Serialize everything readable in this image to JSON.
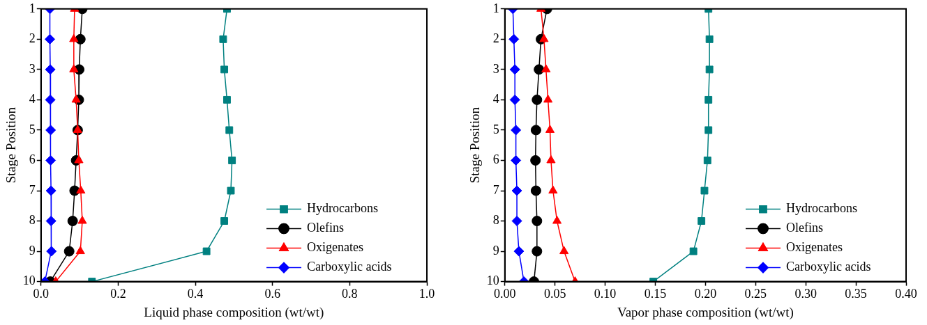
{
  "chart_data": [
    {
      "type": "line",
      "xlabel": "Liquid phase composition (wt/wt)",
      "ylabel": "Stage Position",
      "xlim": [
        0,
        1
      ],
      "xticks": [
        {
          "value": 0,
          "label": "0.0"
        },
        {
          "value": 0.2,
          "label": "0.2"
        },
        {
          "value": 0.4,
          "label": "0.4"
        },
        {
          "value": 0.6,
          "label": "0.6"
        },
        {
          "value": 0.8,
          "label": "0.8"
        },
        {
          "value": 1,
          "label": "1.0"
        }
      ],
      "ylim": [
        10,
        1
      ],
      "yticks": [
        1,
        2,
        3,
        4,
        5,
        6,
        7,
        8,
        9,
        10
      ],
      "grid": false,
      "legend": "bottom right",
      "line_style": "solid",
      "series": [
        {
          "name": "Hydrocarbons",
          "color": "#008080",
          "marker": "square",
          "x": [
            0.482,
            0.472,
            0.475,
            0.482,
            0.488,
            0.495,
            0.492,
            0.475,
            0.429,
            0.132
          ],
          "values": [
            1,
            2,
            3,
            4,
            5,
            6,
            7,
            8,
            9,
            10
          ]
        },
        {
          "name": "Olefins",
          "color": "#000000",
          "marker": "circle",
          "x": [
            0.107,
            0.102,
            0.099,
            0.098,
            0.095,
            0.091,
            0.087,
            0.082,
            0.073,
            0.024
          ],
          "values": [
            1,
            2,
            3,
            4,
            5,
            6,
            7,
            8,
            9,
            10
          ]
        },
        {
          "name": "Oxigenates",
          "color": "#ff0000",
          "marker": "triangle",
          "x": [
            0.087,
            0.085,
            0.085,
            0.091,
            0.095,
            0.098,
            0.103,
            0.107,
            0.102,
            0.038
          ],
          "values": [
            1,
            2,
            3,
            4,
            5,
            6,
            7,
            8,
            9,
            10
          ]
        },
        {
          "name": "Carboxylic acids",
          "color": "#0000ff",
          "marker": "diamond",
          "x": [
            0.023,
            0.023,
            0.024,
            0.024,
            0.025,
            0.025,
            0.026,
            0.026,
            0.027,
            0.01
          ],
          "values": [
            1,
            2,
            3,
            4,
            5,
            6,
            7,
            8,
            9,
            10
          ]
        }
      ]
    },
    {
      "type": "line",
      "xlabel": "Vapor phase composition (wt/wt)",
      "ylabel": "Stage Position",
      "xlim": [
        0,
        0.4
      ],
      "xticks": [
        {
          "value": 0,
          "label": "0.00"
        },
        {
          "value": 0.05,
          "label": "0.05"
        },
        {
          "value": 0.1,
          "label": "0.10"
        },
        {
          "value": 0.15,
          "label": "0.15"
        },
        {
          "value": 0.2,
          "label": "0.20"
        },
        {
          "value": 0.25,
          "label": "0.25"
        },
        {
          "value": 0.3,
          "label": "0.30"
        },
        {
          "value": 0.35,
          "label": "0.35"
        },
        {
          "value": 0.4,
          "label": "0.40"
        }
      ],
      "ylim": [
        10,
        1
      ],
      "yticks": [
        1,
        2,
        3,
        4,
        5,
        6,
        7,
        8,
        9,
        10
      ],
      "grid": false,
      "legend": "bottom right",
      "line_style": "solid",
      "series": [
        {
          "name": "Hydrocarbons",
          "color": "#008080",
          "marker": "square",
          "x": [
            0.203,
            0.204,
            0.204,
            0.203,
            0.203,
            0.202,
            0.199,
            0.196,
            0.188,
            0.148
          ],
          "values": [
            1,
            2,
            3,
            4,
            5,
            6,
            7,
            8,
            9,
            10
          ]
        },
        {
          "name": "Olefins",
          "color": "#000000",
          "marker": "circle",
          "x": [
            0.042,
            0.036,
            0.034,
            0.032,
            0.031,
            0.0305,
            0.031,
            0.032,
            0.032,
            0.029
          ],
          "values": [
            1,
            2,
            3,
            4,
            5,
            6,
            7,
            8,
            9,
            10
          ]
        },
        {
          "name": "Oxigenates",
          "color": "#ff0000",
          "marker": "triangle",
          "x": [
            0.036,
            0.039,
            0.041,
            0.043,
            0.045,
            0.046,
            0.048,
            0.052,
            0.059,
            0.07
          ],
          "values": [
            1,
            2,
            3,
            4,
            5,
            6,
            7,
            8,
            9,
            10
          ]
        },
        {
          "name": "Carboxylic acids",
          "color": "#0000ff",
          "marker": "diamond",
          "x": [
            0.008,
            0.009,
            0.01,
            0.01,
            0.011,
            0.011,
            0.012,
            0.012,
            0.014,
            0.019
          ],
          "values": [
            1,
            2,
            3,
            4,
            5,
            6,
            7,
            8,
            9,
            10
          ]
        }
      ]
    }
  ]
}
